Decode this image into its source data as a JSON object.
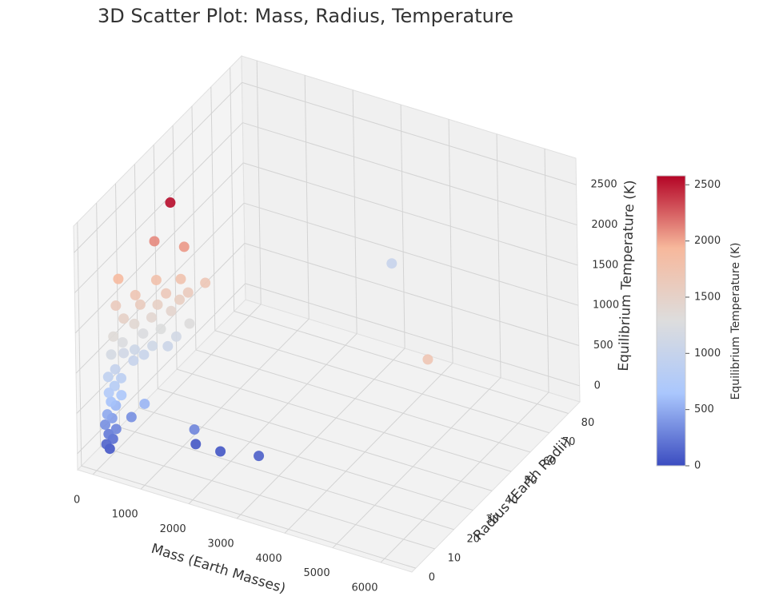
{
  "chart_data": {
    "type": "scatter3d",
    "title": "3D Scatter Plot: Mass, Radius, Temperature",
    "xlabel": "Mass (Earth Masses)",
    "ylabel": "Radius (Earth Radii)",
    "zlabel": "Equilibrium Temperature (K)",
    "x": [
      200,
      150,
      250,
      180,
      300,
      120,
      420,
      680,
      220,
      160,
      260,
      200,
      340,
      180,
      240,
      300,
      150,
      220,
      400,
      500,
      350,
      280,
      600,
      800,
      900,
      180,
      260,
      450,
      700,
      1100,
      150,
      350,
      550,
      800,
      250,
      600,
      900,
      400,
      1000,
      700,
      50,
      300,
      1200,
      850,
      500,
      30,
      270,
      770,
      495,
      1490,
      1560,
      2000,
      2750,
      3000,
      6000
    ],
    "y": [
      2,
      1.5,
      2.5,
      2,
      3,
      1.8,
      8,
      8.5,
      3,
      2,
      4,
      3,
      5,
      2.5,
      4,
      6,
      3,
      5,
      10,
      13,
      12,
      8,
      15,
      18,
      20,
      4,
      8,
      14,
      17,
      22,
      6,
      12,
      16,
      20,
      9,
      18,
      22,
      14,
      24,
      20,
      10,
      14,
      28,
      24,
      20,
      12,
      25,
      28,
      28,
      14.6,
      12.3,
      14.7,
      16,
      80,
      24
    ],
    "z": [
      60,
      120,
      180,
      240,
      300,
      350,
      350,
      550,
      420,
      480,
      560,
      620,
      680,
      740,
      800,
      860,
      920,
      980,
      1000,
      1020,
      1080,
      1120,
      1100,
      1060,
      1150,
      1180,
      1250,
      1250,
      1280,
      1300,
      1350,
      1400,
      1420,
      1450,
      1520,
      1540,
      1560,
      1600,
      1620,
      1650,
      1620,
      1700,
      1680,
      1760,
      1780,
      1900,
      2100,
      2050,
      2550,
      50,
      300,
      50,
      100,
      1000,
      1700
    ],
    "xlim": [
      -320,
      6650
    ],
    "ylim": [
      -2,
      86
    ],
    "zlim": [
      -200,
      2830
    ],
    "xticks": [
      0,
      1000,
      2000,
      3000,
      4000,
      5000,
      6000
    ],
    "yticks": [
      0,
      10,
      20,
      30,
      40,
      50,
      60,
      70,
      80
    ],
    "zticks": [
      0,
      500,
      1000,
      1500,
      2000,
      2500
    ],
    "colormap": [
      "#3b4cc0",
      "#aac7fd",
      "#dddddd",
      "#f7b89c",
      "#b40426"
    ],
    "clim": [
      0,
      2580
    ],
    "colorbar": {
      "label": "Equilibrium Temperature (K)",
      "ticks": [
        0,
        500,
        1000,
        1500,
        2000,
        2500
      ]
    }
  }
}
